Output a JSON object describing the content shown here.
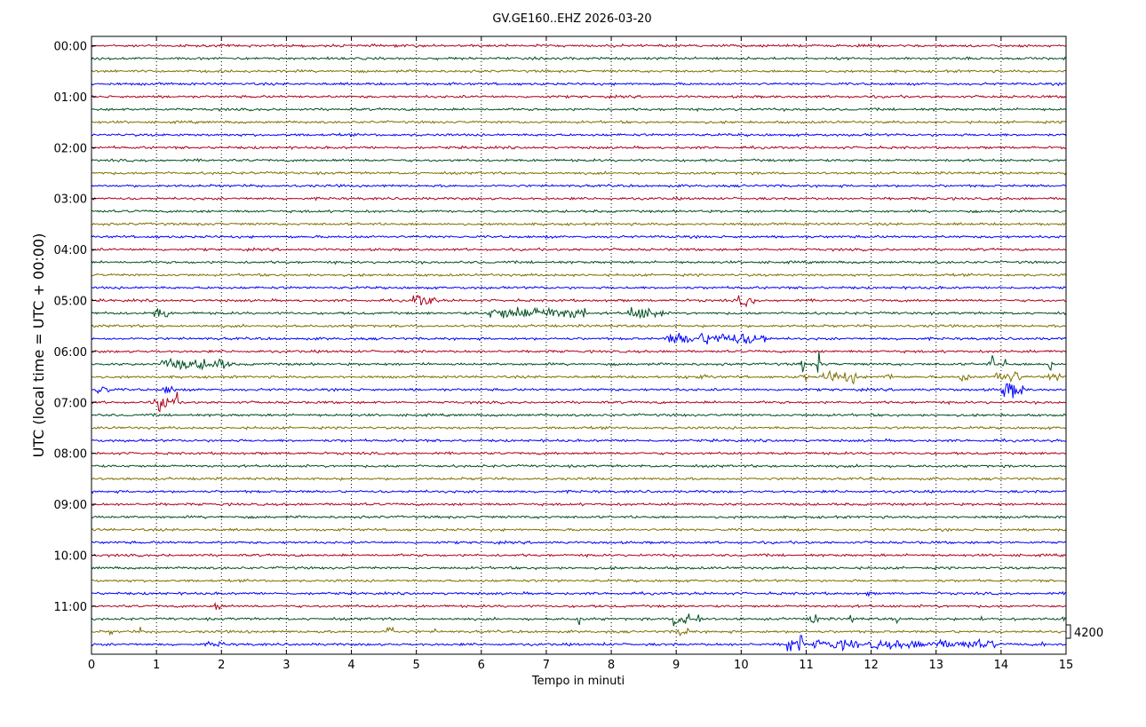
{
  "chart_data": {
    "type": "line",
    "title": "GV.GE160..EHZ 2026-03-20",
    "xlabel": "Tempo in minuti",
    "ylabel": "UTC (local time = UTC + 00:00)",
    "xlim": [
      0,
      15
    ],
    "x_ticks": [
      "0",
      "1",
      "2",
      "3",
      "4",
      "5",
      "6",
      "7",
      "8",
      "9",
      "10",
      "11",
      "12",
      "13",
      "14",
      "15"
    ],
    "y_ticks": [
      "00:00",
      "01:00",
      "02:00",
      "03:00",
      "04:00",
      "05:00",
      "06:00",
      "07:00",
      "08:00",
      "09:00",
      "10:00",
      "11:00"
    ],
    "grid": "vertical dotted at each minute",
    "scale_label": "4200",
    "trace_minutes": 15,
    "trace_count": 48,
    "colors": [
      "#b0001a",
      "#00501e",
      "#807000",
      "#0000ff"
    ],
    "events": [
      {
        "trace": 20,
        "start": 4.95,
        "end": 5.3,
        "amp": 0.55
      },
      {
        "trace": 20,
        "start": 9.95,
        "end": 10.2,
        "amp": 0.5
      },
      {
        "trace": 21,
        "start": 0.95,
        "end": 1.2,
        "amp": 0.55
      },
      {
        "trace": 21,
        "start": 5.5,
        "end": 6.0,
        "amp": 0.12
      },
      {
        "trace": 21,
        "start": 6.1,
        "end": 7.6,
        "amp": 0.55
      },
      {
        "trace": 21,
        "start": 8.2,
        "end": 8.8,
        "amp": 0.55
      },
      {
        "trace": 23,
        "start": 8.85,
        "end": 10.4,
        "amp": 0.55
      },
      {
        "trace": 25,
        "start": 1.05,
        "end": 2.15,
        "amp": 0.5
      },
      {
        "trace": 26,
        "start": 9.1,
        "end": 9.6,
        "amp": 0.18
      },
      {
        "trace": 26,
        "start": 10.9,
        "end": 11.0,
        "amp": 0.5
      },
      {
        "trace": 26,
        "start": 11.25,
        "end": 11.8,
        "amp": 0.55
      },
      {
        "trace": 26,
        "start": 12.2,
        "end": 12.35,
        "amp": 0.4
      },
      {
        "trace": 26,
        "start": 13.35,
        "end": 13.5,
        "amp": 0.55
      },
      {
        "trace": 26,
        "start": 13.9,
        "end": 14.3,
        "amp": 0.55
      },
      {
        "trace": 26,
        "start": 14.7,
        "end": 14.9,
        "amp": 0.4
      },
      {
        "trace": 27,
        "start": 0.0,
        "end": 0.3,
        "amp": 0.45
      },
      {
        "trace": 27,
        "start": 1.1,
        "end": 1.3,
        "amp": 0.4
      },
      {
        "trace": 27,
        "start": 14.0,
        "end": 14.35,
        "amp": 0.75
      },
      {
        "trace": 28,
        "start": 0.95,
        "end": 1.35,
        "amp": 0.75
      },
      {
        "trace": 44,
        "start": 1.9,
        "end": 2.0,
        "amp": 0.6
      },
      {
        "trace": 45,
        "start": 8.95,
        "end": 9.2,
        "amp": 0.9
      },
      {
        "trace": 45,
        "start": 9.3,
        "end": 9.4,
        "amp": 0.6
      },
      {
        "trace": 45,
        "start": 11.05,
        "end": 11.2,
        "amp": 0.6
      },
      {
        "trace": 45,
        "start": 11.65,
        "end": 11.75,
        "amp": 0.5
      },
      {
        "trace": 46,
        "start": 4.55,
        "end": 4.65,
        "amp": 0.6
      },
      {
        "trace": 46,
        "start": 9.0,
        "end": 9.2,
        "amp": 0.4
      },
      {
        "trace": 47,
        "start": 1.8,
        "end": 2.05,
        "amp": 0.25
      },
      {
        "trace": 47,
        "start": 10.7,
        "end": 10.95,
        "amp": 0.95
      },
      {
        "trace": 47,
        "start": 11.1,
        "end": 11.8,
        "amp": 0.45
      },
      {
        "trace": 47,
        "start": 11.95,
        "end": 13.9,
        "amp": 0.4
      }
    ],
    "spikes": [
      {
        "trace": 19,
        "at": 14.6,
        "amp": 0.7
      },
      {
        "trace": 24,
        "at": 6.3,
        "amp": 0.15
      },
      {
        "trace": 25,
        "at": 10.95,
        "amp": 1.4
      },
      {
        "trace": 25,
        "at": 11.2,
        "amp": 2.5
      },
      {
        "trace": 25,
        "at": 13.85,
        "amp": 2.2
      },
      {
        "trace": 25,
        "at": 14.05,
        "amp": 1.3
      },
      {
        "trace": 25,
        "at": 14.75,
        "amp": 2.6
      },
      {
        "trace": 37,
        "at": 7.0,
        "amp": 0.3
      },
      {
        "trace": 38,
        "at": 2.9,
        "amp": 0.15
      },
      {
        "trace": 40,
        "at": 1.2,
        "amp": 0.2
      },
      {
        "trace": 42,
        "at": 7.2,
        "amp": 0.25
      },
      {
        "trace": 43,
        "at": 11.95,
        "amp": 0.6
      },
      {
        "trace": 45,
        "at": 6.0,
        "amp": 0.2
      },
      {
        "trace": 45,
        "at": 7.5,
        "amp": 0.9
      },
      {
        "trace": 45,
        "at": 12.4,
        "amp": 0.5
      },
      {
        "trace": 45,
        "at": 13.7,
        "amp": 0.6
      },
      {
        "trace": 45,
        "at": 14.2,
        "amp": 0.4
      },
      {
        "trace": 45,
        "at": 14.95,
        "amp": 0.5
      },
      {
        "trace": 46,
        "at": 0.3,
        "amp": 0.5
      },
      {
        "trace": 46,
        "at": 0.75,
        "amp": 0.4
      },
      {
        "trace": 46,
        "at": 2.4,
        "amp": 0.4
      },
      {
        "trace": 46,
        "at": 3.5,
        "amp": 0.3
      },
      {
        "trace": 46,
        "at": 5.3,
        "amp": 0.3
      },
      {
        "trace": 47,
        "at": 7.9,
        "amp": 0.3
      },
      {
        "trace": 47,
        "at": 14.65,
        "amp": 0.5
      }
    ]
  }
}
